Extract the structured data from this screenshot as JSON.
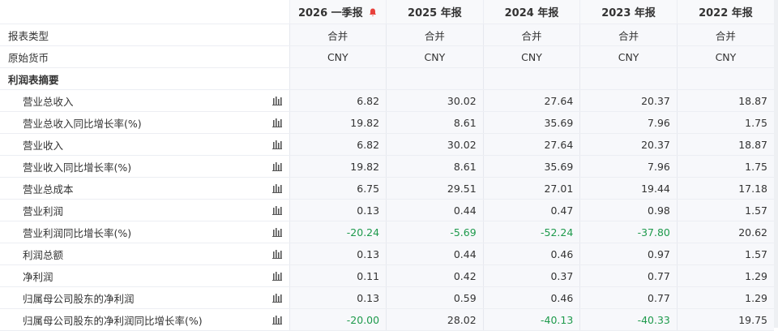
{
  "header": {
    "columns": [
      "2026 一季报",
      "2025 年报",
      "2024 年报",
      "2023 年报",
      "2022 年报"
    ]
  },
  "info_rows": [
    {
      "label": "报表类型",
      "cells": [
        "合并",
        "合并",
        "合并",
        "合并",
        "合并"
      ]
    },
    {
      "label": "原始货币",
      "cells": [
        "CNY",
        "CNY",
        "CNY",
        "CNY",
        "CNY"
      ]
    }
  ],
  "section": {
    "title": "利润表摘要",
    "rows": [
      {
        "label": "营业总收入",
        "cells": [
          "6.82",
          "30.02",
          "27.64",
          "20.37",
          "18.87"
        ]
      },
      {
        "label": "营业总收入同比增长率(%)",
        "cells": [
          "19.82",
          "8.61",
          "35.69",
          "7.96",
          "1.75"
        ]
      },
      {
        "label": "营业收入",
        "cells": [
          "6.82",
          "30.02",
          "27.64",
          "20.37",
          "18.87"
        ]
      },
      {
        "label": "营业收入同比增长率(%)",
        "cells": [
          "19.82",
          "8.61",
          "35.69",
          "7.96",
          "1.75"
        ]
      },
      {
        "label": "营业总成本",
        "cells": [
          "6.75",
          "29.51",
          "27.01",
          "19.44",
          "17.18"
        ]
      },
      {
        "label": "营业利润",
        "cells": [
          "0.13",
          "0.44",
          "0.47",
          "0.98",
          "1.57"
        ]
      },
      {
        "label": "营业利润同比增长率(%)",
        "cells": [
          "-20.24",
          "-5.69",
          "-52.24",
          "-37.80",
          "20.62"
        ]
      },
      {
        "label": "利润总额",
        "cells": [
          "0.13",
          "0.44",
          "0.46",
          "0.97",
          "1.57"
        ]
      },
      {
        "label": "净利润",
        "cells": [
          "0.11",
          "0.42",
          "0.37",
          "0.77",
          "1.29"
        ]
      },
      {
        "label": "归属母公司股东的净利润",
        "cells": [
          "0.13",
          "0.59",
          "0.46",
          "0.77",
          "1.29"
        ]
      },
      {
        "label": "归属母公司股东的净利润同比增长率(%)",
        "cells": [
          "-20.00",
          "28.02",
          "-40.13",
          "-40.33",
          "19.75"
        ]
      }
    ]
  }
}
